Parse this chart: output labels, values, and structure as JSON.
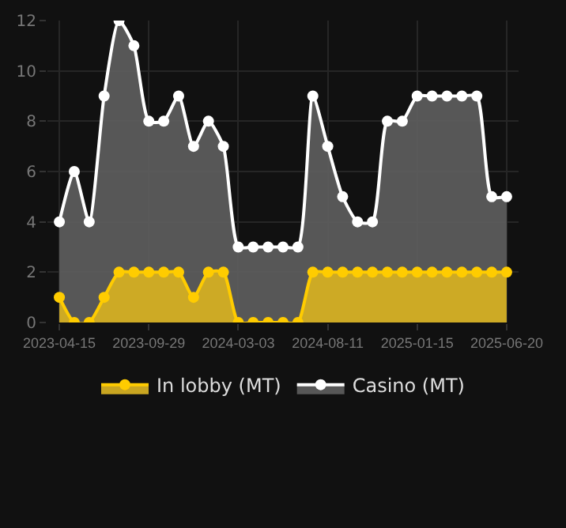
{
  "chart_data": {
    "type": "area",
    "categories": [
      "2023-04-15",
      null,
      null,
      null,
      null,
      null,
      "2023-09-29",
      null,
      null,
      null,
      null,
      null,
      "2024-03-03",
      null,
      null,
      null,
      null,
      null,
      "2024-08-11",
      null,
      null,
      null,
      null,
      null,
      "2025-01-15",
      null,
      null,
      null,
      null,
      null,
      "2025-06-20"
    ],
    "series": [
      {
        "name": "In lobby (MT)",
        "color": "#ffcc00",
        "values": [
          1,
          0,
          0,
          1,
          2,
          2,
          2,
          2,
          2,
          1,
          2,
          2,
          0,
          0,
          0,
          0,
          0,
          2,
          2,
          2,
          2,
          2,
          2,
          2,
          2,
          2,
          2,
          2,
          2,
          2,
          2
        ]
      },
      {
        "name": "Casino (MT)",
        "color": "#ffffff",
        "values": [
          4,
          6,
          4,
          9,
          12,
          11,
          8,
          8,
          9,
          7,
          8,
          7,
          3,
          3,
          3,
          3,
          3,
          9,
          7,
          5,
          4,
          4,
          8,
          8,
          9,
          9,
          9,
          9,
          9,
          5,
          5
        ]
      }
    ],
    "ylim": [
      0,
      12
    ],
    "yticks": [
      0,
      2,
      4,
      6,
      8,
      10,
      12
    ],
    "grid": true,
    "legend": "bottom",
    "marker": "circle",
    "line_style": "solid"
  }
}
